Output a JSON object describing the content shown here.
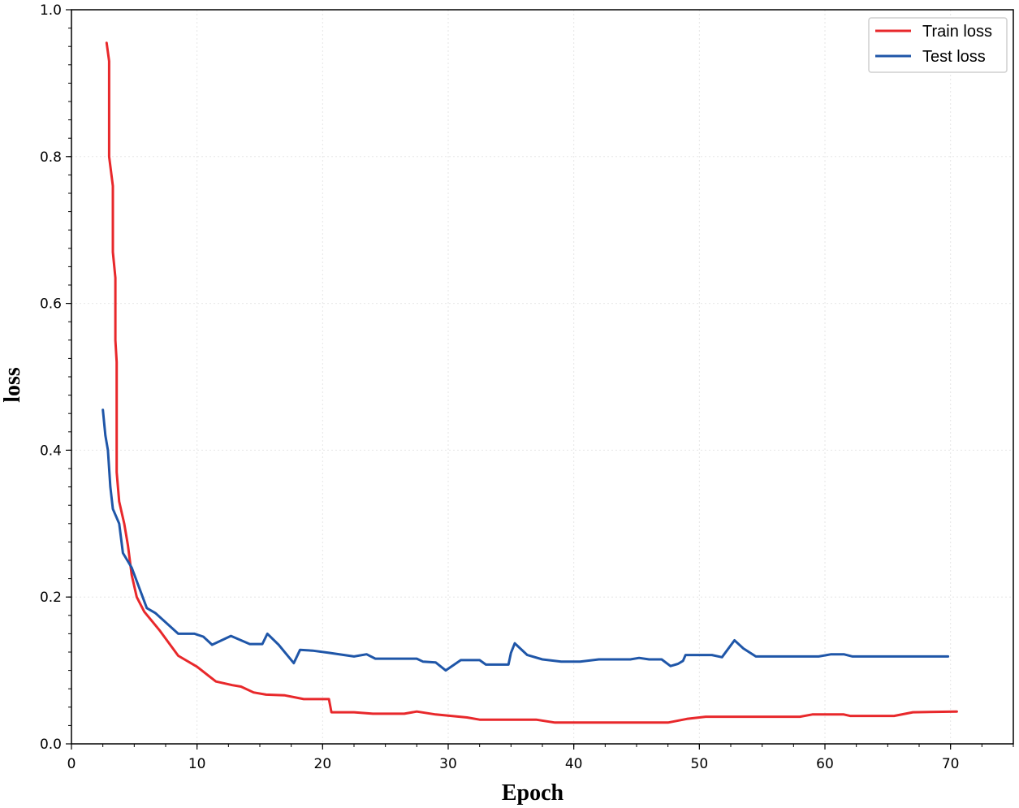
{
  "chart_data": {
    "type": "line",
    "xlabel": "Epoch",
    "ylabel": "loss",
    "xlim": [
      0,
      75
    ],
    "ylim": [
      0,
      1.0
    ],
    "x_ticks": [
      "0",
      "10",
      "20",
      "30",
      "40",
      "50",
      "60",
      "70"
    ],
    "y_ticks": [
      "0.0",
      "0.2",
      "0.4",
      "0.6",
      "0.8",
      "1.0"
    ],
    "grid": true,
    "legend_position": "top-right",
    "series": [
      {
        "name": "Train loss",
        "color": "#e8282b",
        "points": [
          [
            2.8,
            0.955
          ],
          [
            3.0,
            0.93
          ],
          [
            3.0,
            0.8
          ],
          [
            3.3,
            0.76
          ],
          [
            3.3,
            0.67
          ],
          [
            3.5,
            0.635
          ],
          [
            3.5,
            0.55
          ],
          [
            3.6,
            0.52
          ],
          [
            3.6,
            0.37
          ],
          [
            3.8,
            0.33
          ],
          [
            4.2,
            0.3
          ],
          [
            4.5,
            0.27
          ],
          [
            4.8,
            0.23
          ],
          [
            5.2,
            0.2
          ],
          [
            5.8,
            0.18
          ],
          [
            7.0,
            0.155
          ],
          [
            8.5,
            0.12
          ],
          [
            10.0,
            0.105
          ],
          [
            11.5,
            0.085
          ],
          [
            12.8,
            0.08
          ],
          [
            13.5,
            0.078
          ],
          [
            14.5,
            0.07
          ],
          [
            15.5,
            0.067
          ],
          [
            17.0,
            0.066
          ],
          [
            18.5,
            0.061
          ],
          [
            20.5,
            0.061
          ],
          [
            20.7,
            0.043
          ],
          [
            22.5,
            0.043
          ],
          [
            24.0,
            0.041
          ],
          [
            26.5,
            0.041
          ],
          [
            27.5,
            0.044
          ],
          [
            29.0,
            0.04
          ],
          [
            31.5,
            0.036
          ],
          [
            32.5,
            0.033
          ],
          [
            37.0,
            0.033
          ],
          [
            38.5,
            0.029
          ],
          [
            42.0,
            0.029
          ],
          [
            47.5,
            0.029
          ],
          [
            49.0,
            0.034
          ],
          [
            50.5,
            0.037
          ],
          [
            58.0,
            0.037
          ],
          [
            59.0,
            0.04
          ],
          [
            61.5,
            0.04
          ],
          [
            62.0,
            0.038
          ],
          [
            65.5,
            0.038
          ],
          [
            67.0,
            0.043
          ],
          [
            70.5,
            0.044
          ]
        ]
      },
      {
        "name": "Test loss",
        "color": "#1f56a8",
        "points": [
          [
            2.5,
            0.455
          ],
          [
            2.7,
            0.42
          ],
          [
            2.9,
            0.4
          ],
          [
            3.1,
            0.35
          ],
          [
            3.3,
            0.32
          ],
          [
            3.8,
            0.3
          ],
          [
            4.1,
            0.26
          ],
          [
            4.8,
            0.24
          ],
          [
            6.0,
            0.185
          ],
          [
            6.7,
            0.178
          ],
          [
            8.5,
            0.15
          ],
          [
            9.8,
            0.15
          ],
          [
            10.5,
            0.146
          ],
          [
            11.2,
            0.135
          ],
          [
            12.7,
            0.147
          ],
          [
            14.2,
            0.136
          ],
          [
            15.2,
            0.136
          ],
          [
            15.6,
            0.15
          ],
          [
            16.5,
            0.135
          ],
          [
            17.7,
            0.11
          ],
          [
            18.2,
            0.128
          ],
          [
            19.2,
            0.127
          ],
          [
            20.5,
            0.124
          ],
          [
            22.5,
            0.119
          ],
          [
            23.5,
            0.122
          ],
          [
            24.2,
            0.116
          ],
          [
            27.5,
            0.116
          ],
          [
            28.0,
            0.112
          ],
          [
            29.0,
            0.111
          ],
          [
            29.8,
            0.1
          ],
          [
            31.0,
            0.114
          ],
          [
            32.5,
            0.114
          ],
          [
            33.0,
            0.108
          ],
          [
            34.8,
            0.108
          ],
          [
            35.0,
            0.124
          ],
          [
            35.3,
            0.137
          ],
          [
            36.3,
            0.121
          ],
          [
            37.5,
            0.115
          ],
          [
            39.0,
            0.112
          ],
          [
            40.5,
            0.112
          ],
          [
            42.0,
            0.115
          ],
          [
            44.5,
            0.115
          ],
          [
            45.2,
            0.117
          ],
          [
            46.0,
            0.115
          ],
          [
            47.0,
            0.115
          ],
          [
            47.7,
            0.106
          ],
          [
            48.3,
            0.109
          ],
          [
            48.7,
            0.113
          ],
          [
            48.9,
            0.121
          ],
          [
            51.0,
            0.121
          ],
          [
            51.8,
            0.118
          ],
          [
            52.8,
            0.141
          ],
          [
            53.5,
            0.13
          ],
          [
            54.5,
            0.119
          ],
          [
            59.5,
            0.119
          ],
          [
            60.5,
            0.122
          ],
          [
            61.5,
            0.122
          ],
          [
            62.2,
            0.119
          ],
          [
            66.0,
            0.119
          ],
          [
            69.8,
            0.119
          ]
        ]
      }
    ]
  }
}
